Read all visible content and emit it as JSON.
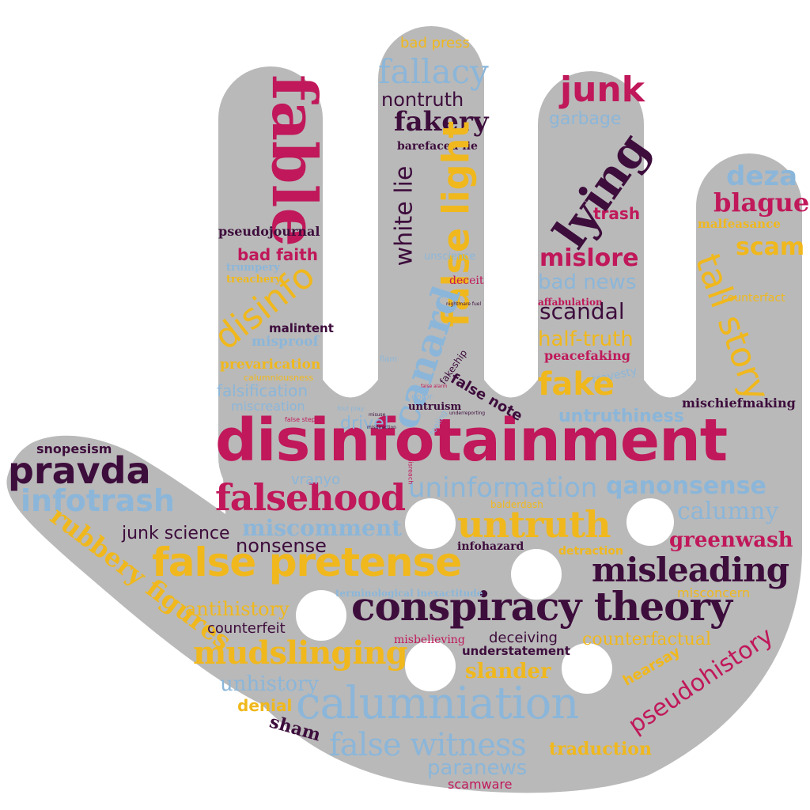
{
  "colors": {
    "background": "#ffffff",
    "hand": "#b9b9b9",
    "crimson": "#c0185a",
    "plum": "#3d0d3c",
    "gold": "#f0b81c",
    "sky": "#8bb6d9"
  },
  "words": {
    "disinfotainment": "disinfotainment",
    "conspiracy_theory": "conspiracy theory",
    "calumniation": "calumniation",
    "false_pretense": "false pretense",
    "misleading": "misleading",
    "falsehood": "falsehood",
    "untruth": "untruth",
    "mudslinging": "mudslinging",
    "false_witness": "false witness",
    "pravda": "pravda",
    "infotrash": "infotrash",
    "fable": "fable",
    "fallacy": "fallacy",
    "fakery": "fakery",
    "nontruth": "nontruth",
    "bad_press": "bad press",
    "barefaced_lie": "barefaced lie",
    "false_light": "false light",
    "white_lie": "white lie",
    "canard": "canard",
    "junk": "junk",
    "garbage": "garbage",
    "lying": "lying",
    "trash": "trash",
    "mislore": "mislore",
    "bad_news": "bad news",
    "affabulation": "affabulation",
    "scandal": "scandal",
    "half_truth": "half-truth",
    "peacefaking": "peacefaking",
    "fake": "fake",
    "travesty": "travesty",
    "deza": "deza",
    "blague": "blague",
    "malfeasance": "malfeasance",
    "scam": "scam",
    "tall_story": "tall story",
    "counterfact": "counterfact",
    "mischiefmaking": "mischiefmaking",
    "untruthiness": "untruthiness",
    "pseudojournal": "pseudojournal",
    "bad_faith": "bad faith",
    "trumpery": "trumpery",
    "treachery": "treachery",
    "disinfo": "disinfo",
    "malintent": "malintent",
    "misproof": "misproof",
    "prevarication": "prevarication",
    "calumniousness": "calumniousness",
    "falsification": "falsification",
    "miscreation": "miscreation",
    "false_step": "false step",
    "foul_play": "foul play",
    "misuse": "misuse",
    "unscience": "unscience",
    "deceit": "deceit",
    "nightmare_fuel": "nightmare fuel",
    "flam": "flam",
    "false_alarm": "false alarm",
    "color": "color",
    "fakeship": "fakeship",
    "false_note": "false note",
    "untruism": "untruism",
    "underreporting": "underreporting",
    "fooling": "fooling",
    "drivel": "drivel",
    "misdirection": "misdirection",
    "snopesism": "snopesism",
    "vranyo": "vranyo",
    "uninformation": "uninformation",
    "qanonsense": "qanonsense",
    "calumny": "calumny",
    "balderdash": "balderdash",
    "misreach": "misreach",
    "junk_science": "junk science",
    "miscomment": "miscomment",
    "nonsense": "nonsense",
    "infohazard": "infohazard",
    "detraction": "detraction",
    "greenwash": "greenwash",
    "rubbery_figures": "rubbery figures",
    "antihistory": "antihistory",
    "terminological_inexactitude": "terminological inexactitude",
    "misconcern": "misconcern",
    "counterfeit": "counterfeit",
    "misbelieving": "misbelieving",
    "deceiving": "deceiving",
    "counterfactual": "counterfactual",
    "understatement": "understatement",
    "pseudohistory": "pseudohistory",
    "slander": "slander",
    "hearsay": "hearsay",
    "unhistory": "unhistory",
    "denial": "denial",
    "sham": "sham",
    "traduction": "traduction",
    "paranews": "paranews",
    "scamware": "scamware"
  }
}
